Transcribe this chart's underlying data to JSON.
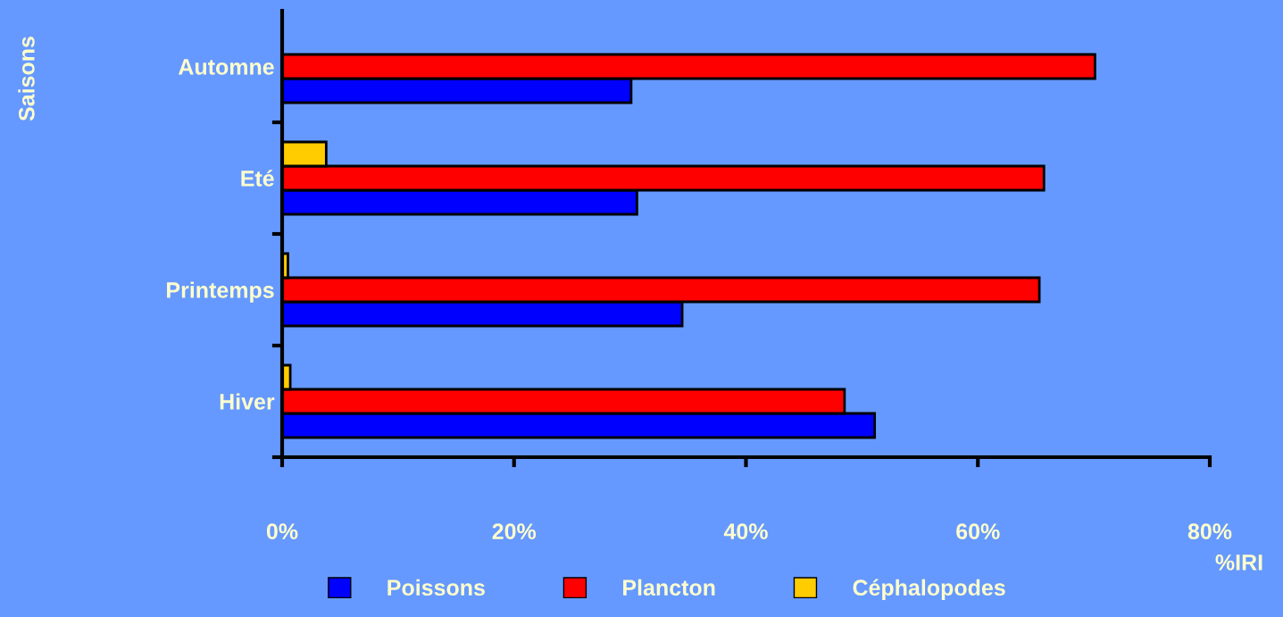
{
  "chart_data": {
    "type": "bar",
    "orientation": "horizontal",
    "xlabel": "%IRI",
    "annotations": [
      "Saisons"
    ],
    "categories": [
      "Automne",
      "Eté",
      "Printemps",
      "Hiver"
    ],
    "series": [
      {
        "name": "Poissons",
        "color": "#0000ff",
        "values": [
          30.1,
          30.6,
          34.5,
          51.1
        ]
      },
      {
        "name": "Plancton",
        "color": "#ff0000",
        "values": [
          70.1,
          65.7,
          65.3,
          48.5
        ]
      },
      {
        "name": "Céphalopodes",
        "color": "#ffcc00",
        "values": [
          null,
          3.8,
          0.5,
          0.7
        ]
      }
    ],
    "xlim": [
      0,
      80
    ],
    "xticks": [
      {
        "value": 0,
        "label": "0%"
      },
      {
        "value": 20,
        "label": "20%"
      },
      {
        "value": 40,
        "label": "40%"
      },
      {
        "value": 60,
        "label": "60%"
      },
      {
        "value": 80,
        "label": "80%"
      }
    ],
    "grid": false,
    "legend": "bottom"
  }
}
